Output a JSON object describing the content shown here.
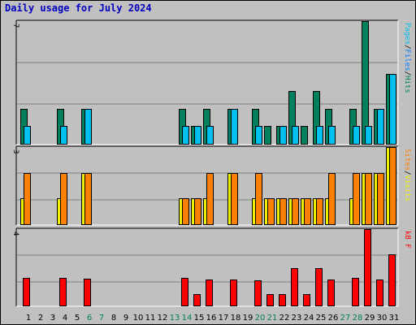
{
  "title": "Daily usage for July 2024",
  "colors": {
    "background": "#C0C0C0",
    "panel": "#C0C0C0",
    "title": "#0000C0",
    "hits": "#00805C",
    "files": "#00C0F0",
    "pages": "#00C0F0",
    "visits": "#F0F000",
    "sites": "#FF8000",
    "kbytes": "#FF0000",
    "weekend_day": "#00805C"
  },
  "chart_data": [
    {
      "type": "bar",
      "panel": "top",
      "ymax_label": "7",
      "ylim": [
        0,
        7
      ],
      "axis_label": [
        {
          "text": "Pages",
          "color": "#00C0F0"
        },
        {
          "text": "/",
          "color": "#000000"
        },
        {
          "text": "Files",
          "color": "#0080FF"
        },
        {
          "text": "/",
          "color": "#000000"
        },
        {
          "text": "Hits",
          "color": "#00805C"
        }
      ],
      "x": [
        1,
        2,
        3,
        4,
        5,
        6,
        7,
        8,
        9,
        10,
        11,
        12,
        13,
        14,
        15,
        16,
        17,
        18,
        19,
        20,
        21,
        22,
        23,
        24,
        25,
        26,
        27,
        28,
        29,
        30,
        31
      ],
      "series": [
        {
          "name": "Hits",
          "color": "#00805C",
          "values": [
            2,
            0,
            0,
            2,
            0,
            2,
            0,
            0,
            0,
            0,
            0,
            0,
            0,
            2,
            1,
            2,
            0,
            2,
            0,
            2,
            1,
            1,
            3,
            1,
            3,
            2,
            0,
            2,
            7,
            2,
            4
          ]
        },
        {
          "name": "Files",
          "color": "#00C0F0",
          "values": [
            1,
            0,
            0,
            1,
            0,
            2,
            0,
            0,
            0,
            0,
            0,
            0,
            0,
            1,
            1,
            1,
            0,
            2,
            0,
            1,
            0,
            1,
            1,
            0,
            1,
            1,
            0,
            1,
            1,
            2,
            4
          ]
        }
      ]
    },
    {
      "type": "bar",
      "panel": "middle",
      "ymax_label": "3",
      "ylim": [
        0,
        3
      ],
      "axis_label": [
        {
          "text": "Sites",
          "color": "#FF8000"
        },
        {
          "text": "/",
          "color": "#000000"
        },
        {
          "text": "Visits",
          "color": "#F0F000"
        }
      ],
      "x": [
        1,
        2,
        3,
        4,
        5,
        6,
        7,
        8,
        9,
        10,
        11,
        12,
        13,
        14,
        15,
        16,
        17,
        18,
        19,
        20,
        21,
        22,
        23,
        24,
        25,
        26,
        27,
        28,
        29,
        30,
        31
      ],
      "series": [
        {
          "name": "Visits",
          "color": "#F0F000",
          "values": [
            1,
            0,
            0,
            1,
            0,
            2,
            0,
            0,
            0,
            0,
            0,
            0,
            0,
            1,
            1,
            1,
            0,
            2,
            0,
            1,
            1,
            1,
            1,
            1,
            1,
            1,
            0,
            1,
            2,
            2,
            3
          ]
        },
        {
          "name": "Sites",
          "color": "#FF8000",
          "values": [
            2,
            0,
            0,
            2,
            0,
            2,
            0,
            0,
            0,
            0,
            0,
            0,
            0,
            1,
            1,
            2,
            0,
            2,
            0,
            2,
            1,
            1,
            1,
            1,
            1,
            2,
            0,
            2,
            2,
            2,
            3
          ]
        }
      ]
    },
    {
      "type": "bar",
      "panel": "bottom",
      "ymax_label": "4",
      "ylim": [
        0,
        4
      ],
      "axis_label": [
        {
          "text": "kB F",
          "color": "#FF0000"
        }
      ],
      "x": [
        1,
        2,
        3,
        4,
        5,
        6,
        7,
        8,
        9,
        10,
        11,
        12,
        13,
        14,
        15,
        16,
        17,
        18,
        19,
        20,
        21,
        22,
        23,
        24,
        25,
        26,
        27,
        28,
        29,
        30,
        31
      ],
      "series": [
        {
          "name": "kB F",
          "color": "#FF0000",
          "values": [
            1.45,
            0,
            0,
            1.45,
            0,
            1.4,
            0,
            0,
            0,
            0,
            0,
            0,
            0,
            1.45,
            0.6,
            1.35,
            0,
            1.35,
            0,
            1.3,
            0.6,
            0.6,
            1.95,
            0.6,
            1.95,
            1.35,
            0,
            1.45,
            4,
            1.35,
            2.7
          ]
        }
      ]
    }
  ],
  "x_axis": {
    "days": [
      "1",
      "2",
      "3",
      "4",
      "5",
      "6",
      "7",
      "8",
      "9",
      "10",
      "11",
      "12",
      "13",
      "14",
      "15",
      "16",
      "17",
      "18",
      "19",
      "20",
      "21",
      "22",
      "23",
      "24",
      "25",
      "26",
      "27",
      "28",
      "29",
      "30",
      "31"
    ],
    "weekend_days": [
      "6",
      "7",
      "13",
      "14",
      "20",
      "21",
      "27",
      "28"
    ]
  }
}
